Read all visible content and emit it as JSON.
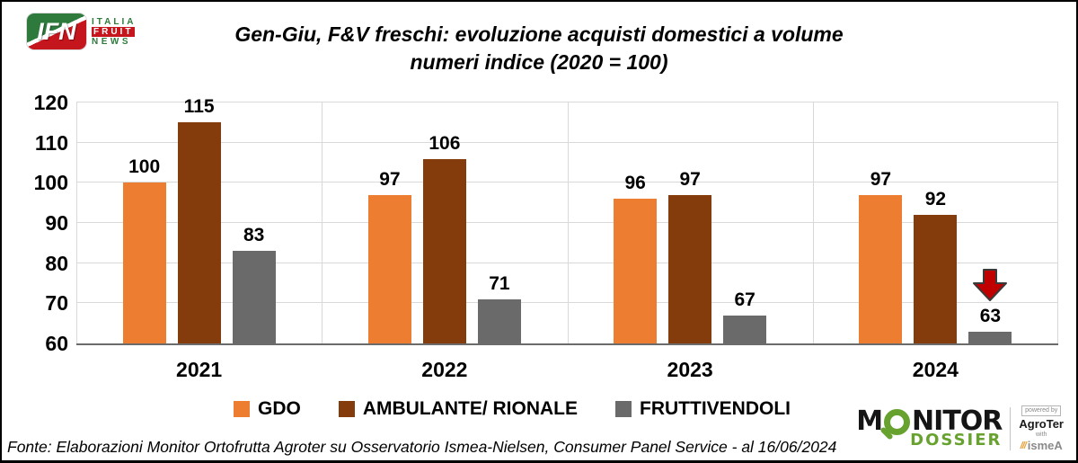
{
  "header": {
    "ifn_logo": {
      "abbrev": "IFN",
      "word1": "ITALIA",
      "word2": "FRUIT",
      "word3": "NEWS"
    },
    "title_line1": "Gen-Giu, F&V freschi: evoluzione acquisti domestici a volume",
    "title_line2": "numeri indice (2020 = 100)"
  },
  "chart_data": {
    "type": "bar",
    "title": "Gen-Giu, F&V freschi: evoluzione acquisti domestici a volume — numeri indice (2020 = 100)",
    "categories": [
      "2021",
      "2022",
      "2023",
      "2024"
    ],
    "series": [
      {
        "name": "GDO",
        "color": "#ED7D31",
        "values": [
          100,
          97,
          96,
          97
        ]
      },
      {
        "name": "AMBULANTE/ RIONALE",
        "color": "#843C0C",
        "values": [
          115,
          106,
          97,
          92
        ]
      },
      {
        "name": "FRUTTIVENDOLI",
        "color": "#6A6A6A",
        "values": [
          83,
          71,
          67,
          63
        ]
      }
    ],
    "ylim": [
      60,
      120
    ],
    "yticks": [
      60,
      70,
      80,
      90,
      100,
      110,
      120
    ],
    "grid": true,
    "legend_position": "bottom",
    "annotation": {
      "type": "down-arrow",
      "series": "FRUTTIVENDOLI",
      "category": "2024",
      "color": "#C00000"
    }
  },
  "footer": {
    "source": "Fonte: Elaborazioni Monitor Ortofrutta Agroter su Osservatorio Ismea-Nielsen, Consumer Panel Service - al 16/06/2024"
  },
  "monitor_logo": {
    "monitor_prefix": "M",
    "monitor_suffix": "NITOR",
    "dossier": "DOSSIER",
    "powered_by": "powered by",
    "agroter": "AgroTer",
    "with_label": "with",
    "ismea_mark": "///",
    "ismea": "ismeA"
  }
}
